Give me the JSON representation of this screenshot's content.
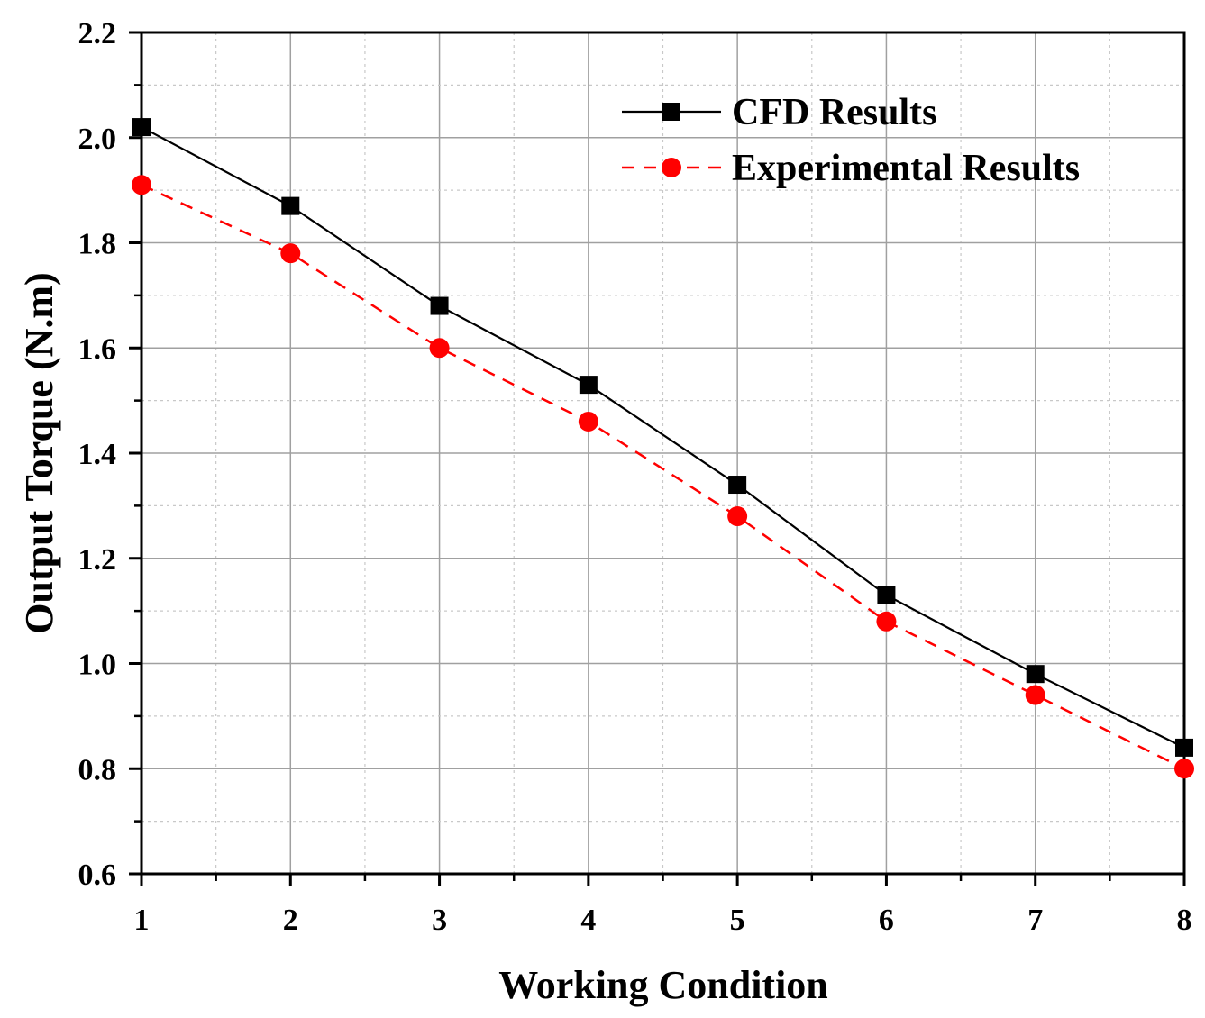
{
  "chart_data": {
    "type": "line",
    "title": "",
    "xlabel": "Working Condition",
    "ylabel": "Output Torque (N.m)",
    "xlim": [
      1,
      8
    ],
    "ylim": [
      0.6,
      2.2
    ],
    "x_ticks": [
      1,
      2,
      3,
      4,
      5,
      6,
      7,
      8
    ],
    "x_tick_labels": [
      "1",
      "2",
      "3",
      "4",
      "5",
      "6",
      "7",
      "8"
    ],
    "y_ticks": [
      0.6,
      0.8,
      1.0,
      1.2,
      1.4,
      1.6,
      1.8,
      2.0,
      2.2
    ],
    "y_tick_labels": [
      "0.6",
      "0.8",
      "1.0",
      "1.2",
      "1.4",
      "1.6",
      "1.8",
      "2.0",
      "2.2"
    ],
    "grid": true,
    "legend_position": "top-right",
    "x": [
      1,
      2,
      3,
      4,
      5,
      6,
      7,
      8
    ],
    "series": [
      {
        "name": "CFD Results",
        "values": [
          2.02,
          1.87,
          1.68,
          1.53,
          1.34,
          1.13,
          0.98,
          0.84
        ],
        "color": "#000000",
        "marker": "square",
        "line_style": "solid"
      },
      {
        "name": "Experimental Results",
        "values": [
          1.91,
          1.78,
          1.6,
          1.46,
          1.28,
          1.08,
          0.94,
          0.8
        ],
        "color": "#ff0000",
        "marker": "circle",
        "line_style": "dashed"
      }
    ]
  }
}
